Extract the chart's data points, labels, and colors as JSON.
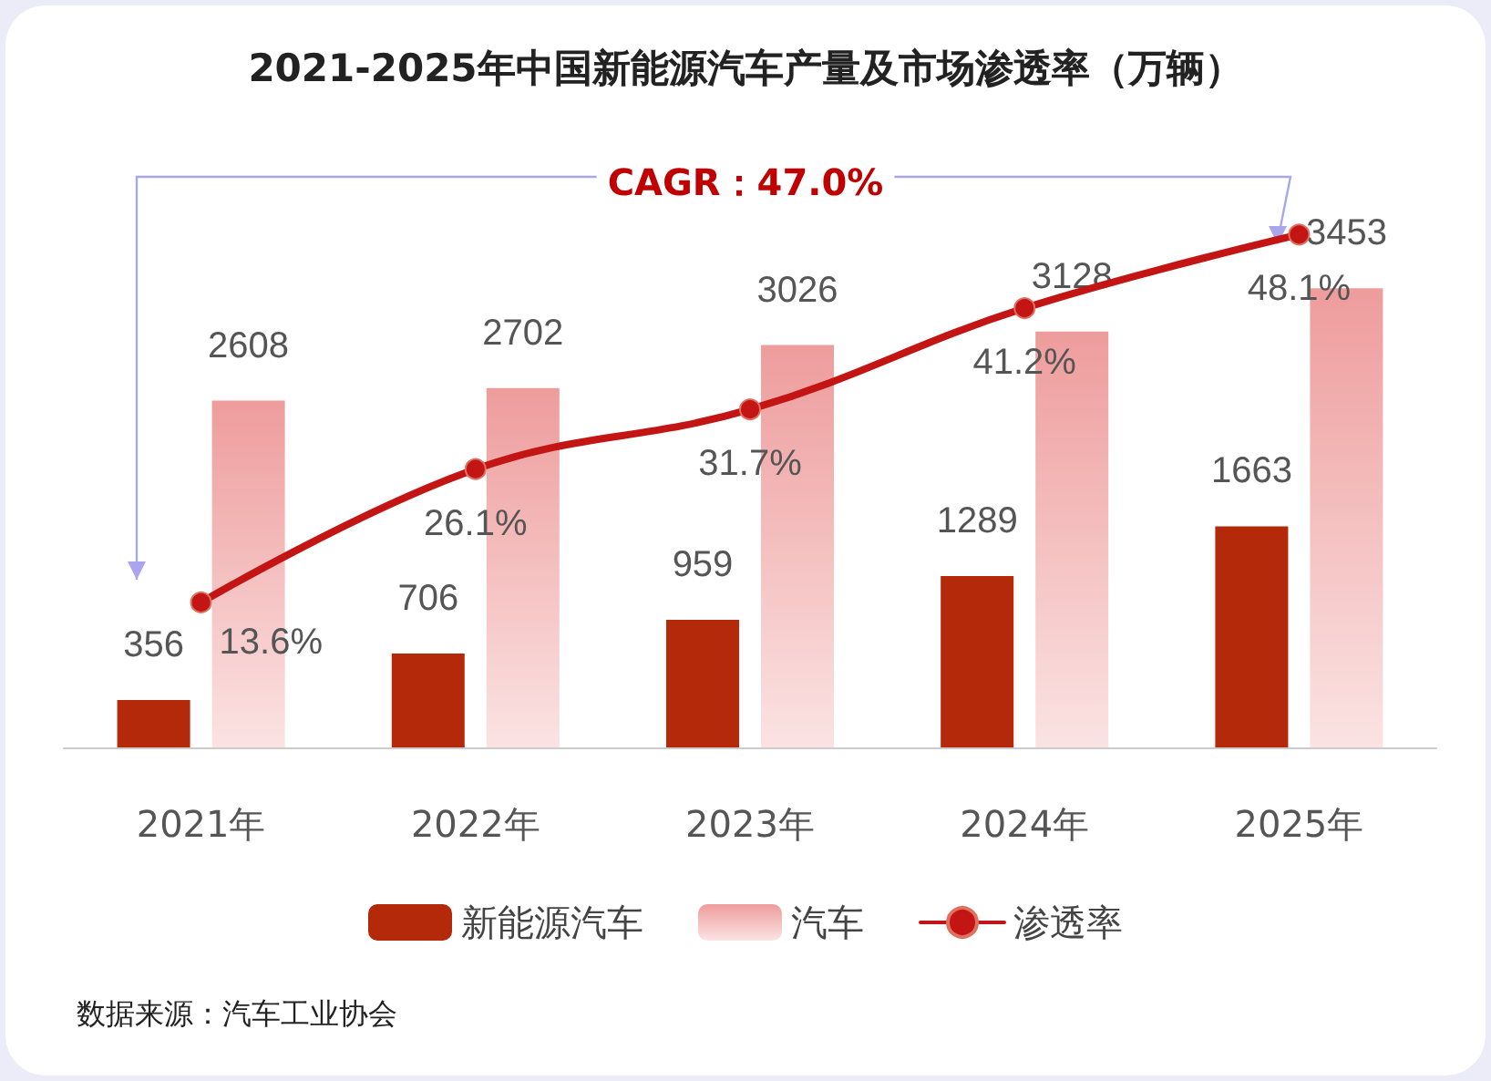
{
  "chart_data": {
    "type": "bar",
    "title": "2021-2025年中国新能源汽车产量及市场渗透率（万辆）",
    "categories": [
      "2021年",
      "2022年",
      "2023年",
      "2024年",
      "2025年"
    ],
    "series": [
      {
        "name": "新能源汽车",
        "color": "#b3290a",
        "values": [
          356,
          706,
          959,
          1289,
          1663
        ]
      },
      {
        "name": "汽车",
        "color": "#ee9c9c",
        "values": [
          2608,
          2702,
          3026,
          3128,
          3453
        ]
      },
      {
        "name": "渗透率",
        "type": "line",
        "axis": "y2",
        "color": "#c41515",
        "values": [
          13.6,
          26.1,
          31.7,
          41.2,
          48.1
        ],
        "value_labels": [
          "13.6%",
          "26.1%",
          "31.7%",
          "41.2%",
          "48.1%"
        ]
      }
    ],
    "ylim": [
      0,
      4250
    ],
    "y2lim": [
      0,
      53
    ],
    "tick_labels": "x",
    "data_labels": true,
    "grid": false,
    "legend": "bottom",
    "marker": "circle",
    "line_style": "solid",
    "annotations": [
      "CAGR：47.0%",
      "数据来源：汽车工业协会"
    ]
  }
}
